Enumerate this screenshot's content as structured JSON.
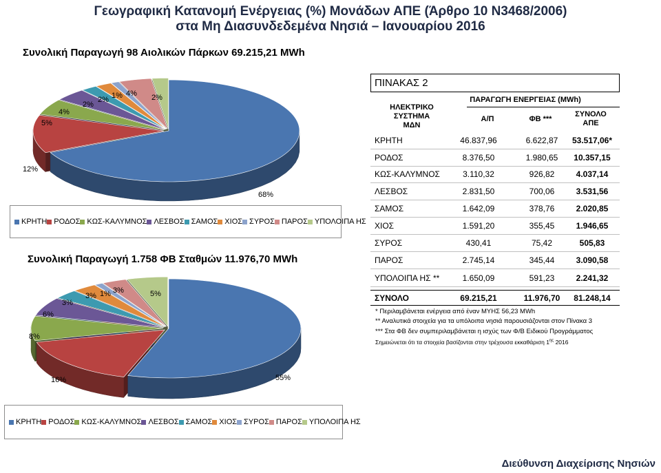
{
  "title_line1": "Γεωγραφική Κατανομή Ενέργειας (%) Μονάδων ΑΠΕ (Άρθρο 10 Ν3468/2006)",
  "title_line2": "στα Μη Διασυνδεδεμένα Νησιά – Ιανουαρίου 2016",
  "footer": "Διεύθυνση Διαχείρισης Νησιών",
  "colors": [
    "#4a76b0",
    "#b84341",
    "#8aa84d",
    "#6b5796",
    "#3d9ab0",
    "#e08a3c",
    "#8ca3cc",
    "#d08a88",
    "#b5c98a"
  ],
  "chart_data": [
    {
      "type": "pie",
      "title": "Συνολική Παραγωγή 98 Αιολικών Πάρκων 69.215,21 MWh",
      "categories": [
        "ΚΡΗΤΗ",
        "ΡΟΔΟΣ",
        "ΚΩΣ-ΚΑΛΥΜΝΟΣ",
        "ΛΕΣΒΟΣ",
        "ΣΑΜΟΣ",
        "ΧΙΟΣ",
        "ΣΥΡΟΣ",
        "ΠΑΡΟΣ",
        "ΥΠΟΛΟΙΠΑ ΗΣ"
      ],
      "values": [
        68,
        12,
        5,
        4,
        2,
        2,
        1,
        4,
        2
      ],
      "labels": [
        "68%",
        "12%",
        "5%",
        "4%",
        "2%",
        "2%",
        "1%",
        "4%",
        "2%"
      ],
      "legend": "bottom"
    },
    {
      "type": "pie",
      "title": "Συνολική Παραγωγή 1.758 ΦΒ Σταθμών 11.976,70 MWh",
      "categories": [
        "ΚΡΗΤΗ",
        "ΡΟΔΟΣ",
        "ΚΩΣ-ΚΑΛΥΜΝΟΣ",
        "ΛΕΣΒΟΣ",
        "ΣΑΜΟΣ",
        "ΧΙΟΣ",
        "ΣΥΡΟΣ",
        "ΠΑΡΟΣ",
        "ΥΠΟΛΟΙΠΑ ΗΣ"
      ],
      "values": [
        55,
        16,
        8,
        6,
        3,
        3,
        1,
        3,
        5
      ],
      "labels": [
        "55%",
        "16%",
        "8%",
        "6%",
        "3%",
        "3%",
        "1%",
        "3%",
        "5%"
      ],
      "legend": "bottom"
    }
  ],
  "table": {
    "title": "ΠΙΝΑΚΑΣ 2",
    "header_system": "ΗΛΕΚΤΡΙΚΟ ΣΥΣΤΗΜΑ ΜΔΝ",
    "header_prod": "ΠΑΡΑΓΩΓΗ ΕΝΕΡΓΕΙΑΣ (MWh)",
    "header_ap": "Α/Π",
    "header_fb": "ΦΒ ***",
    "header_total": "ΣΥΝΟΛΟ ΑΠΕ",
    "rows": [
      {
        "name": "ΚΡΗΤΗ",
        "ap": "46.837,96",
        "fb": "6.622,87",
        "total": "53.517,06*"
      },
      {
        "name": "ΡΟΔΟΣ",
        "ap": "8.376,50",
        "fb": "1.980,65",
        "total": "10.357,15"
      },
      {
        "name": "ΚΩΣ-ΚΑΛΥΜΝΟΣ",
        "ap": "3.110,32",
        "fb": "926,82",
        "total": "4.037,14"
      },
      {
        "name": "ΛΕΣΒΟΣ",
        "ap": "2.831,50",
        "fb": "700,06",
        "total": "3.531,56"
      },
      {
        "name": "ΣΑΜΟΣ",
        "ap": "1.642,09",
        "fb": "378,76",
        "total": "2.020,85"
      },
      {
        "name": "ΧΙΟΣ",
        "ap": "1.591,20",
        "fb": "355,45",
        "total": "1.946,65"
      },
      {
        "name": "ΣΥΡΟΣ",
        "ap": "430,41",
        "fb": "75,42",
        "total": "505,83"
      },
      {
        "name": "ΠΑΡΟΣ",
        "ap": "2.745,14",
        "fb": "345,44",
        "total": "3.090,58"
      },
      {
        "name": "ΥΠΟΛΟΙΠΑ ΗΣ **",
        "ap": "1.650,09",
        "fb": "591,23",
        "total": "2.241,32"
      },
      {
        "name": "ΣΥΝΟΛΟ",
        "ap": "69.215,21",
        "fb": "11.976,70",
        "total": "81.248,14"
      }
    ]
  },
  "notes": [
    "*  Περιλαμβάνεται ενέργεια από έναν ΜΥΗΣ 56,23 MWh",
    "**  Αναλυτικά στοιχεία για τα υπόλοιπα νησιά παρουσιάζονται στον Πίνακα 3",
    "*** Στα ΦΒ δεν συμπεριλαμβάνεται η ισχύς των Φ/Β Ειδικού Προγράμματος",
    "Σημειώνεται ότι τα στοιχεία βασίζονται στην τρέχουσα εκκαθάριση 1",
    "ης",
    " 2016"
  ]
}
